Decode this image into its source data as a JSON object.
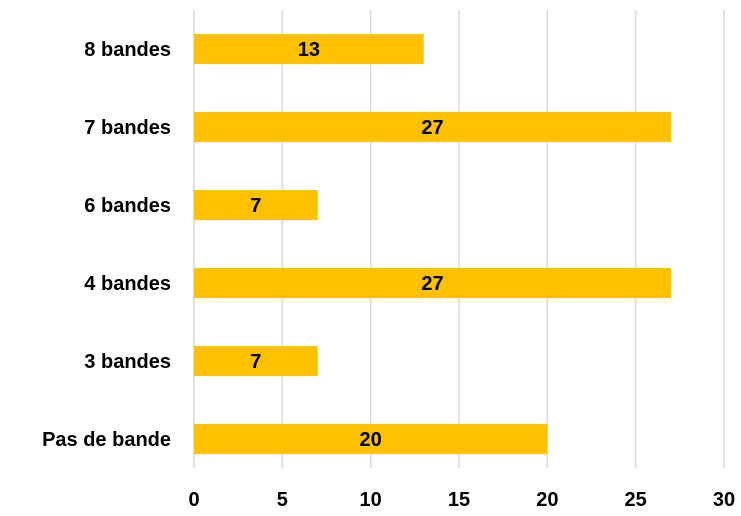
{
  "chart_data": {
    "type": "bar",
    "orientation": "horizontal",
    "categories": [
      "Pas de bande",
      "3 bandes",
      "4 bandes",
      "6 bandes",
      "7 bandes",
      "8 bandes"
    ],
    "values": [
      20,
      7,
      27,
      7,
      27,
      13
    ],
    "value_labels": [
      "20",
      "7",
      "27",
      "7",
      "27",
      "13"
    ],
    "x_ticks": [
      "0",
      "5",
      "10",
      "15",
      "20",
      "25",
      "30"
    ],
    "xlim": [
      0,
      30
    ],
    "title": "",
    "xlabel": "",
    "ylabel": "",
    "grid": "vertical",
    "legend": "none",
    "colors": {
      "bar": "#FFC000",
      "grid": "#D9D9D9",
      "text": "#000000"
    }
  }
}
